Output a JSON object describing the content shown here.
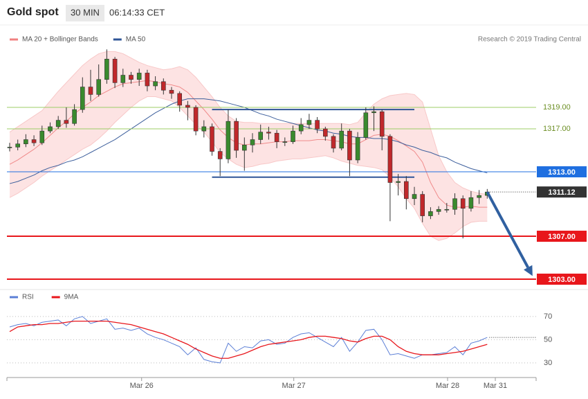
{
  "header": {
    "title": "Gold spot",
    "interval": "30 MIN",
    "time": "06:14:33 CET"
  },
  "chart_data": [
    {
      "type": "candlestick",
      "legend": [
        {
          "name": "MA 20 + Bollinger Bands",
          "color": "#f08080"
        },
        {
          "name": "MA 50",
          "color": "#2f5597"
        }
      ],
      "credit": "Research © 2019 Trading Central",
      "up_color": "#3a8a2e",
      "down_color": "#c0282b",
      "band_color": "#fde3e3",
      "ma20_color": "#f08a8a",
      "ma50_color": "#3d5f9c",
      "xlim": [
        -0.34,
        65.04
      ],
      "ylim": [
        1302.55,
        1326.55
      ],
      "close": [
        1315.3,
        1315.6,
        1316.0,
        1315.7,
        1316.8,
        1317.2,
        1317.8,
        1317.5,
        1318.8,
        1320.9,
        1320.2,
        1321.6,
        1323.5,
        1321.3,
        1322.0,
        1321.6,
        1322.2,
        1321.0,
        1321.4,
        1320.6,
        1320.3,
        1319.2,
        1319.0,
        1316.8,
        1317.2,
        1314.9,
        1314.2,
        1317.7,
        1315.0,
        1315.5,
        1316.0,
        1316.7,
        1316.6,
        1315.8,
        1315.8,
        1316.8,
        1317.4,
        1317.8,
        1317.0,
        1316.3,
        1315.2,
        1316.8,
        1314.1,
        1316.2,
        1318.5,
        1318.6,
        1316.3,
        1312.0,
        1312.1,
        1310.5,
        1310.9,
        1308.9,
        1309.3,
        1309.5,
        1309.5,
        1310.5,
        1309.6,
        1310.6,
        1310.8,
        1311.12
      ],
      "high": [
        1315.7,
        1316.0,
        1316.5,
        1316.4,
        1317.3,
        1317.6,
        1318.2,
        1319.0,
        1319.3,
        1321.8,
        1322.5,
        1323.0,
        1324.4,
        1323.7,
        1322.6,
        1322.3,
        1322.6,
        1322.5,
        1321.9,
        1321.7,
        1320.9,
        1320.5,
        1319.6,
        1319.2,
        1317.8,
        1317.5,
        1315.2,
        1318.8,
        1318.0,
        1316.2,
        1316.6,
        1317.4,
        1317.2,
        1316.9,
        1316.2,
        1317.3,
        1318.0,
        1318.4,
        1318.1,
        1317.2,
        1316.5,
        1317.5,
        1317.0,
        1316.7,
        1319.0,
        1319.1,
        1318.8,
        1316.5,
        1312.8,
        1312.6,
        1311.6,
        1311.2,
        1309.7,
        1309.8,
        1310.1,
        1311.0,
        1310.8,
        1311.2,
        1311.3,
        1311.4
      ],
      "low": [
        1314.9,
        1315.0,
        1315.3,
        1315.4,
        1315.5,
        1316.6,
        1317.0,
        1317.1,
        1317.3,
        1318.5,
        1319.6,
        1320.0,
        1321.2,
        1320.8,
        1320.9,
        1321.2,
        1321.0,
        1320.5,
        1320.6,
        1320.2,
        1319.8,
        1318.6,
        1317.8,
        1316.4,
        1316.2,
        1314.5,
        1312.6,
        1313.8,
        1314.3,
        1313.1,
        1314.8,
        1315.6,
        1316.0,
        1315.2,
        1315.4,
        1315.6,
        1316.5,
        1317.0,
        1316.6,
        1315.9,
        1314.8,
        1315.0,
        1312.6,
        1313.8,
        1316.0,
        1316.8,
        1315.0,
        1308.4,
        1310.8,
        1309.5,
        1309.9,
        1308.3,
        1308.6,
        1309.0,
        1309.2,
        1309.0,
        1306.8,
        1309.3,
        1310.0,
        1310.5
      ],
      "bollinger_upper": [
        1316.7,
        1317.2,
        1317.7,
        1318.2,
        1318.7,
        1319.6,
        1320.5,
        1321.3,
        1322.1,
        1322.9,
        1323.5,
        1324.0,
        1324.2,
        1324.2,
        1324.0,
        1323.6,
        1323.2,
        1322.9,
        1322.7,
        1322.5,
        1322.6,
        1322.8,
        1322.5,
        1321.8,
        1320.9,
        1320.0,
        1319.0,
        1318.2,
        1317.7,
        1317.6,
        1317.6,
        1317.5,
        1317.5,
        1317.5,
        1317.5,
        1317.5,
        1317.5,
        1317.5,
        1317.5,
        1317.5,
        1317.5,
        1317.5,
        1317.4,
        1317.6,
        1318.5,
        1319.3,
        1319.8,
        1320.1,
        1320.2,
        1320.3,
        1320.2,
        1319.5,
        1317.0,
        1314.5,
        1313.0,
        1312.0,
        1311.5,
        1311.2,
        1311.0,
        1310.9
      ],
      "bollinger_lower": [
        1310.6,
        1311.0,
        1311.5,
        1312.0,
        1312.6,
        1313.1,
        1313.6,
        1314.1,
        1314.6,
        1315.1,
        1315.5,
        1316.1,
        1316.8,
        1317.6,
        1318.3,
        1319.0,
        1319.6,
        1320.0,
        1320.0,
        1319.8,
        1319.6,
        1319.0,
        1318.2,
        1317.4,
        1316.7,
        1315.8,
        1314.8,
        1314.2,
        1313.7,
        1313.4,
        1313.5,
        1313.7,
        1313.8,
        1314.0,
        1314.1,
        1314.2,
        1314.2,
        1314.3,
        1314.4,
        1314.5,
        1314.3,
        1314.0,
        1313.8,
        1313.6,
        1313.5,
        1313.4,
        1313.2,
        1312.5,
        1311.6,
        1310.5,
        1309.6,
        1308.2,
        1307.0,
        1306.6,
        1306.8,
        1307.3,
        1307.9,
        1308.3,
        1308.4,
        1308.4
      ],
      "ma20": [
        1313.7,
        1314.1,
        1314.6,
        1315.1,
        1315.7,
        1316.4,
        1317.1,
        1317.7,
        1318.4,
        1319.0,
        1319.5,
        1320.1,
        1320.5,
        1320.9,
        1321.2,
        1321.3,
        1321.4,
        1321.5,
        1321.4,
        1321.2,
        1321.1,
        1320.9,
        1320.4,
        1319.6,
        1318.8,
        1317.9,
        1316.9,
        1316.2,
        1315.7,
        1315.5,
        1315.6,
        1315.6,
        1315.7,
        1315.8,
        1315.8,
        1315.9,
        1315.9,
        1315.9,
        1316.0,
        1316.0,
        1315.9,
        1315.8,
        1315.6,
        1315.6,
        1316.0,
        1316.4,
        1316.5,
        1316.3,
        1315.9,
        1315.4,
        1314.9,
        1313.9,
        1312.0,
        1310.6,
        1309.9,
        1309.7,
        1309.7,
        1309.8,
        1309.7,
        1309.7
      ],
      "ma50": [
        1311.9,
        1312.1,
        1312.4,
        1312.7,
        1313.1,
        1313.4,
        1313.6,
        1313.9,
        1314.1,
        1314.4,
        1314.8,
        1315.2,
        1315.6,
        1316.0,
        1316.5,
        1317.0,
        1317.5,
        1318.0,
        1318.5,
        1318.9,
        1319.3,
        1319.6,
        1319.8,
        1319.8,
        1319.8,
        1319.7,
        1319.6,
        1319.4,
        1319.2,
        1319.0,
        1318.7,
        1318.4,
        1318.2,
        1317.9,
        1317.7,
        1317.5,
        1317.3,
        1317.1,
        1316.9,
        1316.8,
        1316.6,
        1316.5,
        1316.3,
        1316.2,
        1316.2,
        1316.1,
        1316.1,
        1316.0,
        1315.8,
        1315.5,
        1315.3,
        1315.0,
        1314.8,
        1314.5,
        1314.3,
        1313.9,
        1313.6,
        1313.3,
        1313.1,
        1312.9
      ],
      "levels": [
        {
          "value": 1319,
          "label": "1319.00",
          "color": "#9ccc65",
          "style": "text"
        },
        {
          "value": 1317,
          "label": "1317.00",
          "color": "#9ccc65",
          "style": "text"
        },
        {
          "value": 1313,
          "label": "1313.00",
          "color": "#1f6fe0",
          "style": "box"
        },
        {
          "value": 1307,
          "label": "1307.00",
          "color": "#e8161b",
          "style": "box"
        },
        {
          "value": 1303,
          "label": "1303.00",
          "color": "#e8161b",
          "style": "box"
        }
      ],
      "last_price": {
        "value": 1311.12,
        "label": "1311.12",
        "color": "#333333"
      },
      "range_box": {
        "top": 1318.8,
        "bottom": 1312.5,
        "start": 25,
        "end": 50,
        "color": "#2f5597"
      },
      "arrow": {
        "from": [
          59,
          1311.12
        ],
        "to": [
          64.6,
          1303.3
        ],
        "color": "#3060a0"
      }
    },
    {
      "type": "line",
      "xlim": [
        -0.34,
        65.04
      ],
      "ylim": [
        20.4,
        80.1
      ],
      "yticks": [
        70,
        50,
        30
      ],
      "xticks": [
        {
          "value": 16.3,
          "label": "Mar 26"
        },
        {
          "value": 35.1,
          "label": "Mar 27"
        },
        {
          "value": 54.1,
          "label": "Mar 28"
        },
        {
          "value": 60,
          "label": "Mar 31"
        }
      ],
      "series": [
        {
          "name": "RSI",
          "color": "#5b7fd6",
          "values": [
            61,
            63,
            64,
            62,
            65,
            66,
            67,
            62,
            68,
            70,
            64,
            66,
            68,
            59,
            60,
            58,
            60,
            55,
            52,
            50,
            47,
            44,
            37,
            43,
            33,
            31,
            30,
            47,
            40,
            44,
            43,
            49,
            50,
            46,
            47,
            52,
            55,
            56,
            52,
            48,
            44,
            52,
            40,
            48,
            58,
            59,
            50,
            37,
            38,
            36,
            34,
            37,
            37,
            38,
            39,
            44,
            37,
            47,
            49,
            52
          ]
        },
        {
          "name": "9MA",
          "color": "#e8161b",
          "values": [
            57,
            61,
            62,
            63,
            63,
            64,
            64,
            65,
            66,
            66,
            66,
            66,
            66,
            65,
            64,
            63,
            61,
            59,
            57,
            55,
            52,
            49,
            46,
            42,
            39,
            36,
            34,
            34,
            36,
            38,
            41,
            44,
            46,
            47,
            48,
            49,
            50,
            52,
            53,
            53,
            52,
            51,
            49,
            48,
            51,
            53,
            53,
            50,
            44,
            40,
            38,
            37,
            37,
            37,
            38,
            39,
            40,
            42,
            44,
            46
          ]
        }
      ]
    }
  ]
}
